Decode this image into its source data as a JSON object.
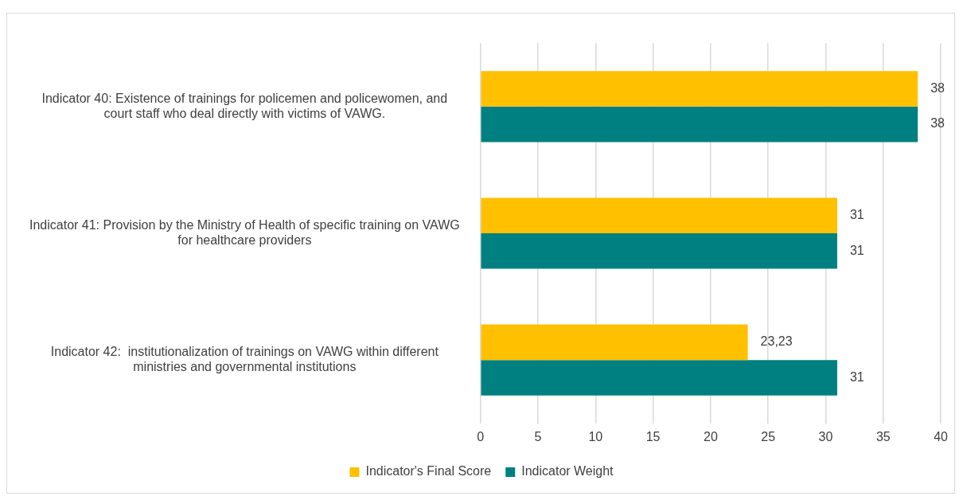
{
  "chart_data": {
    "type": "bar",
    "orientation": "horizontal",
    "categories": [
      "Indicator 40: Existence of trainings for policemen and policewomen, and court staff who deal directly with victims of VAWG.",
      "Indicator 41: Provision by the Ministry of Health of specific training on VAWG for healthcare providers",
      "Indicator 42:  institutionalization of trainings on VAWG within different ministries and governmental institutions"
    ],
    "series": [
      {
        "name": "Indicator's Final Score",
        "color": "#ffc000",
        "values": [
          38,
          31,
          23.23
        ],
        "value_labels": [
          "38",
          "31",
          "23,23"
        ]
      },
      {
        "name": "Indicator Weight",
        "color": "#008080",
        "values": [
          38,
          31,
          31
        ],
        "value_labels": [
          "38",
          "31",
          "31"
        ]
      }
    ],
    "xlim": [
      0,
      40
    ],
    "xticks": [
      0,
      5,
      10,
      15,
      20,
      25,
      30,
      35,
      40
    ],
    "grid": "x",
    "legend": "bottom"
  }
}
